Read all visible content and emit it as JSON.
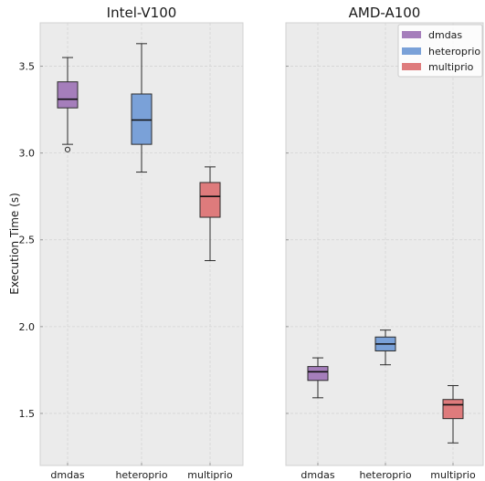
{
  "ylabel": "Execution Time (s)",
  "yticks": [
    "1.5",
    "2.0",
    "2.5",
    "3.0",
    "3.5"
  ],
  "ytick_values": [
    1.5,
    2.0,
    2.5,
    3.0,
    3.5
  ],
  "legend": {
    "placement": "top-right",
    "entries": [
      {
        "label": "dmdas",
        "color": "#a57ebb"
      },
      {
        "label": "heteroprio",
        "color": "#7aa1d8"
      },
      {
        "label": "multiprio",
        "color": "#de7b7c"
      }
    ]
  },
  "colors": {
    "dmdas": "#a57ebb",
    "heteroprio": "#7aa1d8",
    "multiprio": "#de7b7c",
    "plot_background": "#ebebeb",
    "grid": "#d4d4d4"
  },
  "chart_data": [
    {
      "type": "box",
      "title": "Intel-V100",
      "categories": [
        "dmdas",
        "heteroprio",
        "multiprio"
      ],
      "ylabel": "Execution Time (s)",
      "ylim": [
        1.2,
        3.75
      ],
      "grid": true,
      "series": [
        {
          "name": "dmdas",
          "whisker_low": 3.05,
          "q1": 3.26,
          "median": 3.31,
          "q3": 3.41,
          "whisker_high": 3.55,
          "outliers": [
            3.02
          ]
        },
        {
          "name": "heteroprio",
          "whisker_low": 2.89,
          "q1": 3.05,
          "median": 3.19,
          "q3": 3.34,
          "whisker_high": 3.63,
          "outliers": []
        },
        {
          "name": "multiprio",
          "whisker_low": 2.38,
          "q1": 2.63,
          "median": 2.75,
          "q3": 2.83,
          "whisker_high": 2.92,
          "outliers": []
        }
      ]
    },
    {
      "type": "box",
      "title": "AMD-A100",
      "categories": [
        "dmdas",
        "heteroprio",
        "multiprio"
      ],
      "ylim": [
        1.2,
        3.75
      ],
      "grid": true,
      "series": [
        {
          "name": "dmdas",
          "whisker_low": 1.59,
          "q1": 1.69,
          "median": 1.74,
          "q3": 1.77,
          "whisker_high": 1.82,
          "outliers": []
        },
        {
          "name": "heteroprio",
          "whisker_low": 1.78,
          "q1": 1.86,
          "median": 1.9,
          "q3": 1.94,
          "whisker_high": 1.98,
          "outliers": []
        },
        {
          "name": "multiprio",
          "whisker_low": 1.33,
          "q1": 1.47,
          "median": 1.55,
          "q3": 1.58,
          "whisker_high": 1.66,
          "outliers": []
        }
      ]
    }
  ]
}
